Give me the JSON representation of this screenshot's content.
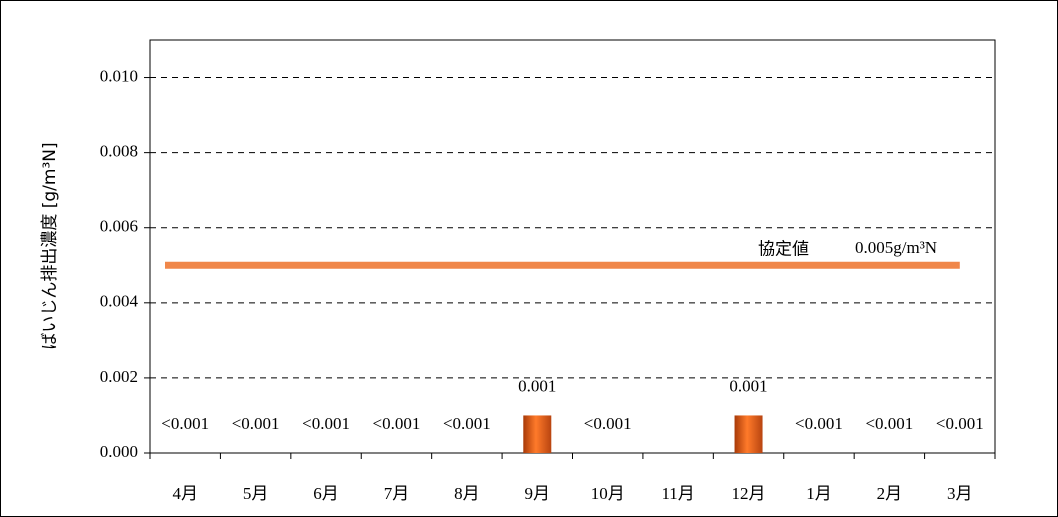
{
  "chart_data": {
    "type": "bar",
    "y_label": "ばいじん排出濃度 [g/m³N]",
    "categories": [
      "4月",
      "5月",
      "6月",
      "7月",
      "8月",
      "9月",
      "10月",
      "11月",
      "12月",
      "1月",
      "2月",
      "3月"
    ],
    "values": [
      null,
      null,
      null,
      null,
      null,
      0.001,
      null,
      null,
      0.001,
      null,
      null,
      null
    ],
    "value_labels": [
      "<0.001",
      "<0.001",
      "<0.001",
      "<0.001",
      "<0.001",
      "0.001",
      "<0.001",
      null,
      "0.001",
      "<0.001",
      "<0.001",
      "<0.001"
    ],
    "color": "#e8601c",
    "ylim": [
      0,
      0.011
    ],
    "yticks": [
      {
        "value": 0,
        "label": "0.000"
      },
      {
        "value": 0.002,
        "label": "0.002"
      },
      {
        "value": 0.004,
        "label": "0.004"
      },
      {
        "value": 0.006,
        "label": "0.006"
      },
      {
        "value": 0.008,
        "label": "0.008"
      },
      {
        "value": 0.01,
        "label": "0.010"
      }
    ],
    "grid": true,
    "reference_line": {
      "value": 0.005,
      "label": "協定値",
      "value_label": "0.005g/m³N",
      "color": "#f0874a"
    }
  }
}
